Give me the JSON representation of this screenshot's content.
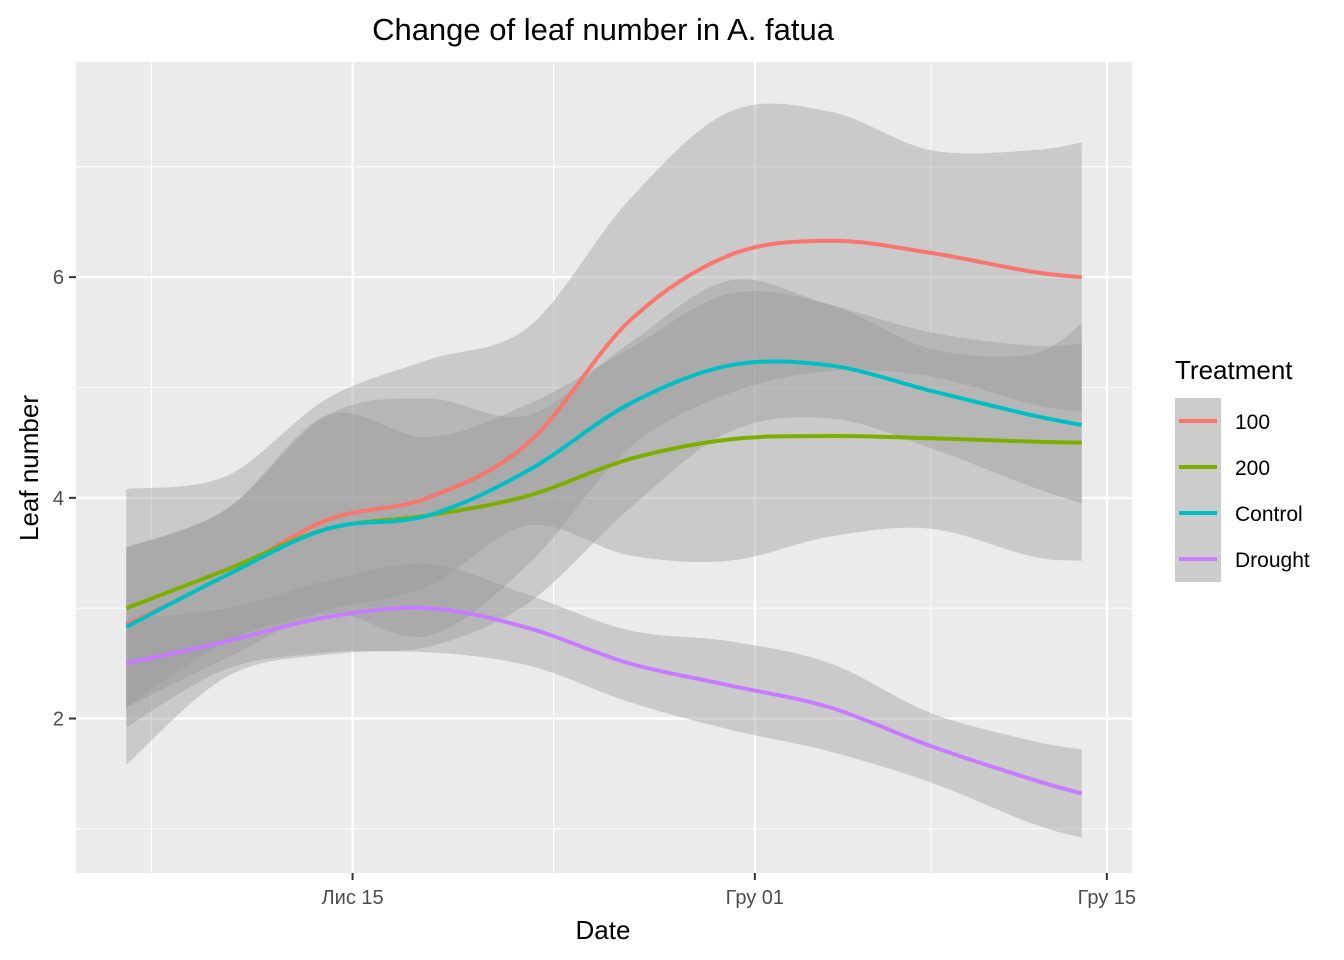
{
  "chart_data": {
    "type": "line",
    "title": "Change of leaf number in A. fatua",
    "xlabel": "Date",
    "ylabel": "Leaf number",
    "x_tick_labels": [
      "Лис 15",
      "Гру 01",
      "Гру 15"
    ],
    "y_tick_labels": [
      "2",
      "4",
      "6"
    ],
    "legend_title": "Treatment",
    "legend_position": "right",
    "grid": true,
    "x_axis_type": "date",
    "xlim": [
      "2017-11-04",
      "2017-12-16"
    ],
    "ylim": [
      0.6,
      7.95
    ],
    "x": [
      "2017-11-06",
      "2017-11-10",
      "2017-11-14",
      "2017-11-18",
      "2017-11-22",
      "2017-11-26",
      "2017-11-30",
      "2017-12-04",
      "2017-12-08",
      "2017-12-12",
      "2017-12-14"
    ],
    "series": [
      {
        "name": "100",
        "color": "#F8766D",
        "values": [
          2.85,
          3.3,
          3.8,
          4.0,
          4.5,
          5.6,
          6.2,
          6.33,
          6.22,
          6.05,
          6.0
        ],
        "lower": [
          2.1,
          2.55,
          2.95,
          2.75,
          3.4,
          4.45,
          4.95,
          5.15,
          5.1,
          4.85,
          4.78
        ],
        "upper": [
          4.08,
          4.2,
          4.9,
          5.25,
          5.55,
          6.7,
          7.5,
          7.5,
          7.15,
          7.15,
          7.22
        ]
      },
      {
        "name": "200",
        "color": "#7CAE00",
        "values": [
          3.0,
          3.35,
          3.72,
          3.84,
          4.02,
          4.35,
          4.53,
          4.56,
          4.54,
          4.51,
          4.5
        ],
        "lower": [
          2.1,
          2.7,
          2.98,
          3.2,
          3.75,
          3.48,
          3.43,
          3.65,
          3.72,
          3.47,
          3.43
        ],
        "upper": [
          3.55,
          3.9,
          4.75,
          4.55,
          4.85,
          5.35,
          5.85,
          5.75,
          5.35,
          5.3,
          5.58
        ]
      },
      {
        "name": "Control",
        "color": "#00BFC4",
        "values": [
          2.83,
          3.3,
          3.72,
          3.84,
          4.25,
          4.85,
          5.2,
          5.2,
          4.97,
          4.75,
          4.66
        ],
        "lower": [
          1.92,
          2.45,
          2.6,
          2.65,
          3.05,
          3.9,
          4.6,
          4.72,
          4.45,
          4.1,
          3.95
        ],
        "upper": [
          3.55,
          3.9,
          4.75,
          4.9,
          4.75,
          5.4,
          5.97,
          5.75,
          5.5,
          5.38,
          5.4
        ]
      },
      {
        "name": "Drought",
        "color": "#C77CFF",
        "values": [
          2.5,
          2.7,
          2.92,
          3.0,
          2.82,
          2.5,
          2.3,
          2.1,
          1.75,
          1.45,
          1.32
        ],
        "lower": [
          1.58,
          2.38,
          2.58,
          2.6,
          2.48,
          2.15,
          1.9,
          1.7,
          1.42,
          1.05,
          0.92
        ],
        "upper": [
          2.9,
          3.0,
          3.25,
          3.4,
          3.12,
          2.8,
          2.7,
          2.5,
          2.05,
          1.8,
          1.72
        ]
      }
    ]
  }
}
